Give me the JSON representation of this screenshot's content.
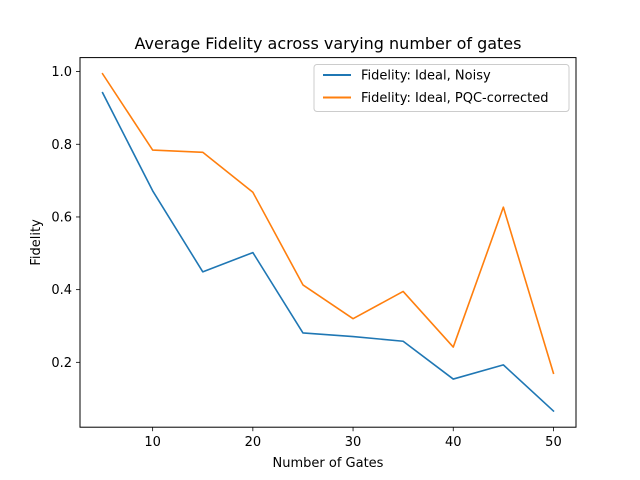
{
  "chart_data": {
    "type": "line",
    "title": "Average Fidelity across varying number of gates",
    "xlabel": "Number of Gates",
    "ylabel": "Fidelity",
    "x": [
      5,
      10,
      15,
      20,
      25,
      30,
      35,
      40,
      45,
      50
    ],
    "xlim": [
      2.75,
      52.25
    ],
    "ylim": [
      0.0215,
      1.0385
    ],
    "xticks": [
      10,
      20,
      30,
      40,
      50
    ],
    "yticks": [
      0.2,
      0.4,
      0.6,
      0.8,
      1.0
    ],
    "xtick_labels": [
      "10",
      "20",
      "30",
      "40",
      "50"
    ],
    "ytick_labels": [
      "0.2",
      "0.4",
      "0.6",
      "0.8",
      "1.0"
    ],
    "grid": false,
    "legend_position": "upper right",
    "series": [
      {
        "name": "Fidelity: Ideal, Noisy",
        "color": "#1f77b4",
        "values": [
          0.942,
          0.672,
          0.449,
          0.502,
          0.281,
          0.271,
          0.258,
          0.154,
          0.193,
          0.066
        ]
      },
      {
        "name": "Fidelity: Ideal, PQC-corrected",
        "color": "#ff7f0e",
        "values": [
          0.994,
          0.784,
          0.778,
          0.668,
          0.413,
          0.32,
          0.395,
          0.242,
          0.627,
          0.17
        ]
      }
    ]
  }
}
